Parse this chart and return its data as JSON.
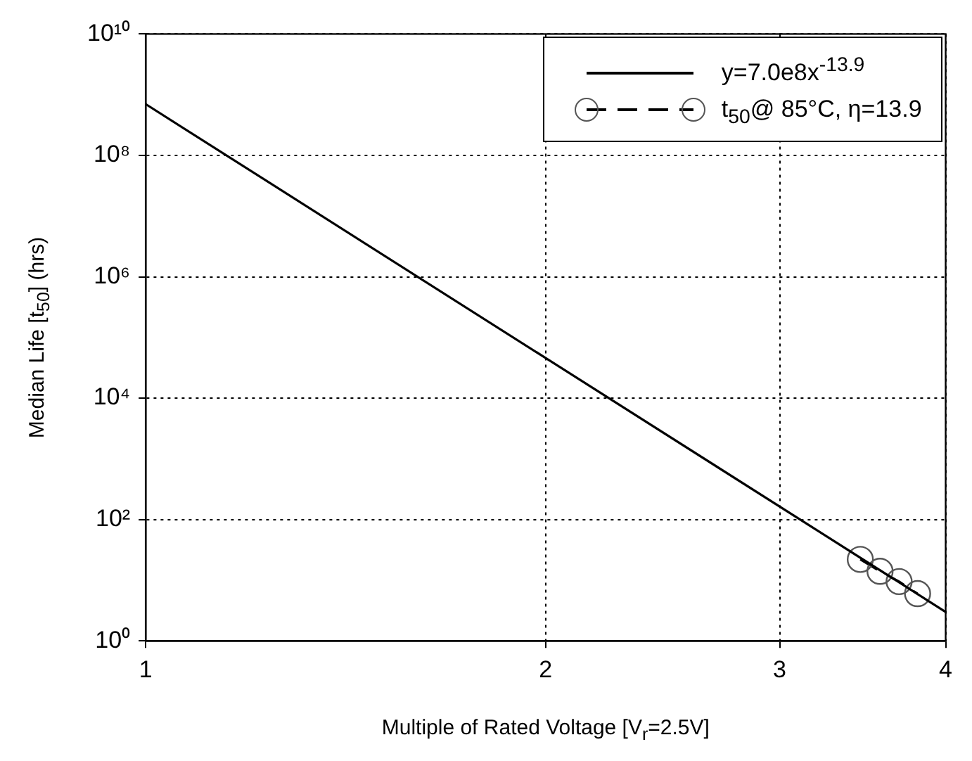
{
  "chart_data": {
    "type": "line",
    "xlabel": "Multiple of Rated Voltage [V$_{r}$=2.5V]",
    "ylabel": "Median Life [t$_{50}$] (hrs)",
    "log": "xy",
    "grid": true,
    "legend": "top right",
    "xlim": [
      1,
      4
    ],
    "xticks": [
      1,
      2,
      3,
      4
    ],
    "ylim": [
      1,
      10000000000
    ],
    "yticks": [
      {
        "value": 1,
        "label": "10⁰"
      },
      {
        "value": 100,
        "label": "10²"
      },
      {
        "value": 10000,
        "label": "10⁴"
      },
      {
        "value": 1000000,
        "label": "10⁶"
      },
      {
        "value": 100000000,
        "label": "10⁸"
      },
      {
        "value": 10000000000,
        "label": "10¹⁰"
      }
    ],
    "series": [
      {
        "name": "y=7.0e8x$^{-13.9}$",
        "type": "line",
        "color": "#000000",
        "x": [
          1,
          4
        ],
        "values": [
          700000000,
          3
        ],
        "marker": "none",
        "line_style": "solid"
      },
      {
        "name": "t$_{50}$@ 85°C, η=13.9",
        "type": "line",
        "color": "#000000",
        "x": [
          3.45,
          3.57,
          3.69,
          3.81
        ],
        "values": [
          22,
          14,
          9.5,
          6
        ],
        "marker": "circle",
        "line_style": "dashed"
      }
    ]
  }
}
